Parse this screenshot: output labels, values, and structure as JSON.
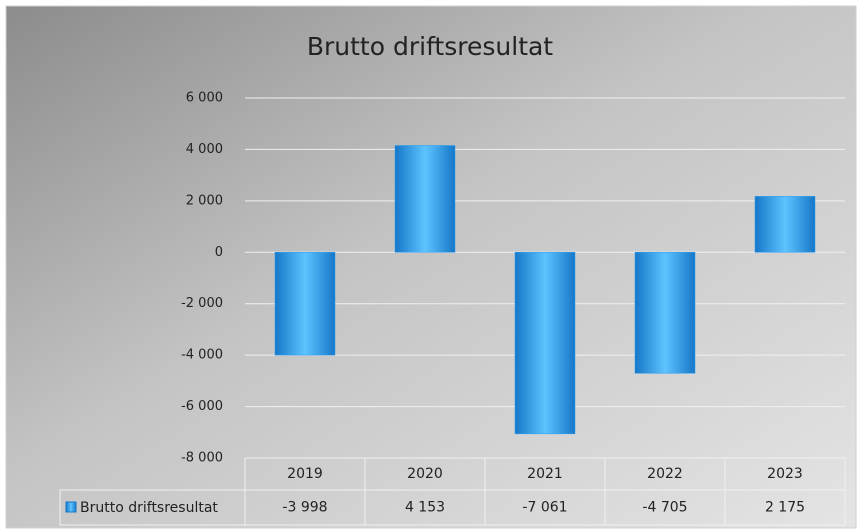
{
  "chart_data": {
    "type": "bar",
    "title": "Brutto driftsresultat",
    "categories": [
      "2019",
      "2020",
      "2021",
      "2022",
      "2023"
    ],
    "series": [
      {
        "name": "Brutto driftsresultat",
        "color": "#2a9df4",
        "values": [
          -3998,
          4153,
          -7061,
          -4705,
          2175
        ],
        "value_labels": [
          "-3 998",
          "4 153",
          "-7 061",
          "-4 705",
          "2 175"
        ]
      }
    ],
    "ylim": [
      -8000,
      6000
    ],
    "yticks": [
      {
        "value": -8000,
        "label": "-8 000"
      },
      {
        "value": -6000,
        "label": "-6 000"
      },
      {
        "value": -4000,
        "label": "-4 000"
      },
      {
        "value": -2000,
        "label": "-2 000"
      },
      0,
      {
        "value": 2000,
        "label": "2 000"
      },
      {
        "value": 4000,
        "label": "4 000"
      },
      {
        "value": 6000,
        "label": "6 000"
      }
    ],
    "grid": true
  }
}
